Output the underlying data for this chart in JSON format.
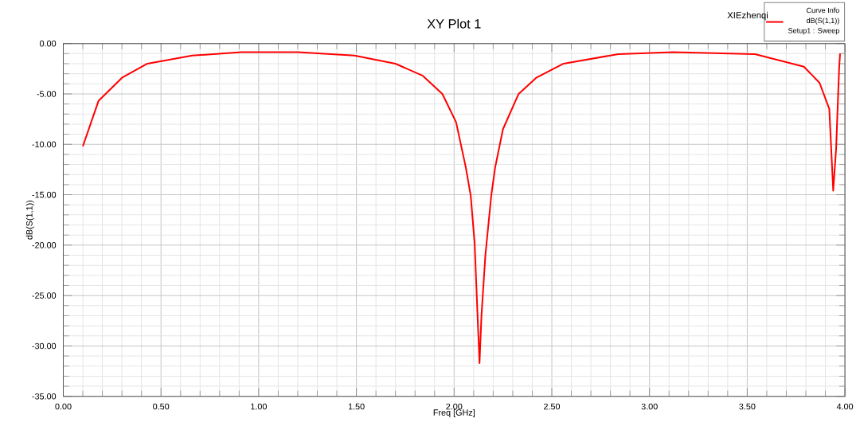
{
  "chart_data": {
    "type": "line",
    "title": "XY Plot 1",
    "xlabel": "Freq [GHz]",
    "ylabel": "dB(S(1,1))",
    "legend_title": "Curve Info",
    "annotations": [
      "XIEzhenqi",
      "Setup1 : Sweep"
    ],
    "xlim": [
      0,
      4
    ],
    "ylim": [
      -35,
      0
    ],
    "xticks": [
      {
        "value": 0,
        "label": "0.00"
      },
      {
        "value": 0.5,
        "label": "0.50"
      },
      {
        "value": 1,
        "label": "1.00"
      },
      {
        "value": 1.5,
        "label": "1.50"
      },
      {
        "value": 2,
        "label": "2.00"
      },
      {
        "value": 2.5,
        "label": "2.50"
      },
      {
        "value": 3,
        "label": "3.00"
      },
      {
        "value": 3.5,
        "label": "3.50"
      },
      {
        "value": 4,
        "label": "4.00"
      }
    ],
    "yticks": [
      {
        "value": 0,
        "label": "0.00"
      },
      {
        "value": -5,
        "label": "-5.00"
      },
      {
        "value": -10,
        "label": "-10.00"
      },
      {
        "value": -15,
        "label": "-15.00"
      },
      {
        "value": -20,
        "label": "-20.00"
      },
      {
        "value": -25,
        "label": "-25.00"
      },
      {
        "value": -30,
        "label": "-30.00"
      },
      {
        "value": -35,
        "label": "-35.00"
      }
    ],
    "grid": true,
    "legend": "top right",
    "marker": "none",
    "line_style": "solid",
    "series": [
      {
        "name": "dB(S(1,1))",
        "color": "#ff0000",
        "x": [
          0.1,
          0.18,
          0.3,
          0.43,
          0.66,
          0.91,
          1.2,
          1.49,
          1.7,
          1.84,
          1.94,
          2.01,
          2.06,
          2.085,
          2.105,
          2.12,
          2.13,
          2.14,
          2.16,
          2.19,
          2.21,
          2.25,
          2.33,
          2.42,
          2.56,
          2.84,
          3.12,
          3.54,
          3.79,
          3.87,
          3.92,
          3.94,
          3.955,
          3.97,
          3.975
        ],
        "values": [
          -10.2,
          -5.7,
          -3.4,
          -2.0,
          -1.2,
          -0.85,
          -0.85,
          -1.2,
          -2.0,
          -3.2,
          -5.0,
          -7.8,
          -12.3,
          -15.1,
          -19.8,
          -27,
          -31.7,
          -27,
          -21,
          -15.1,
          -12.3,
          -8.5,
          -5.0,
          -3.4,
          -2.0,
          -1.05,
          -0.85,
          -1.05,
          -2.3,
          -3.9,
          -6.5,
          -14.6,
          -10.4,
          -2.6,
          -1.0
        ]
      }
    ]
  }
}
